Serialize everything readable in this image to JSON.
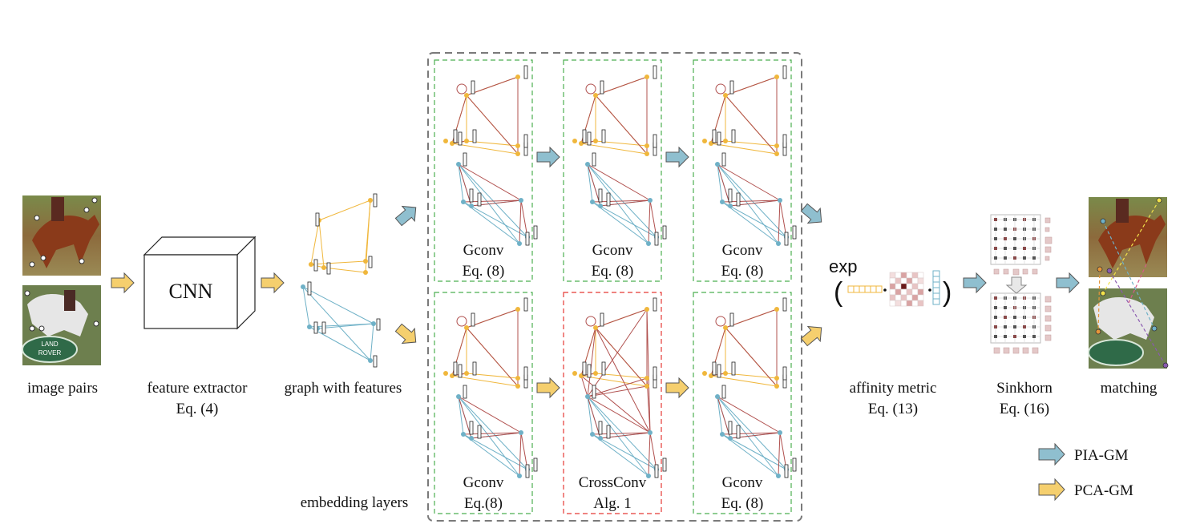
{
  "stages": {
    "image_pairs": "image pairs",
    "feature_extractor": {
      "line1": "feature extractor",
      "line2": "Eq. (4)"
    },
    "cnn": "CNN",
    "graph_with_features": "graph with features",
    "embedding_layers": "embedding layers",
    "affinity_metric": {
      "line1": "affinity metric",
      "line2": "Eq. (13)",
      "exp": "exp"
    },
    "sinkhorn": {
      "line1": "Sinkhorn",
      "line2": "Eq. (16)"
    },
    "matching": "matching"
  },
  "layers": {
    "top": [
      {
        "name": "Gconv",
        "eq": "Eq. (8)"
      },
      {
        "name": "Gconv",
        "eq": "Eq. (8)"
      },
      {
        "name": "Gconv",
        "eq": "Eq. (8)"
      }
    ],
    "bottom": [
      {
        "name": "Gconv",
        "eq": "Eq.(8)"
      },
      {
        "name": "CrossConv",
        "eq": "Alg. 1"
      },
      {
        "name": "Gconv",
        "eq": "Eq. (8)"
      }
    ]
  },
  "photos": {
    "top": {
      "land": "",
      "rover": ""
    },
    "bottom": {
      "land": "LAND",
      "rover": "ROVER"
    }
  },
  "legend": [
    {
      "label": "PIA-GM",
      "color": "#8fbfcf"
    },
    {
      "label": "PCA-GM",
      "color": "#f5cf6e"
    }
  ],
  "colors": {
    "blue_arrow": "#8fbfcf",
    "yellow_arrow": "#f5cf6e",
    "yellow_graph": "#f0b73c",
    "blue_graph": "#6fb1c7",
    "red_edge": "#b0504e",
    "green_box": "#4caf50",
    "red_box": "#e53935",
    "gray_box": "#7a7a7a"
  }
}
